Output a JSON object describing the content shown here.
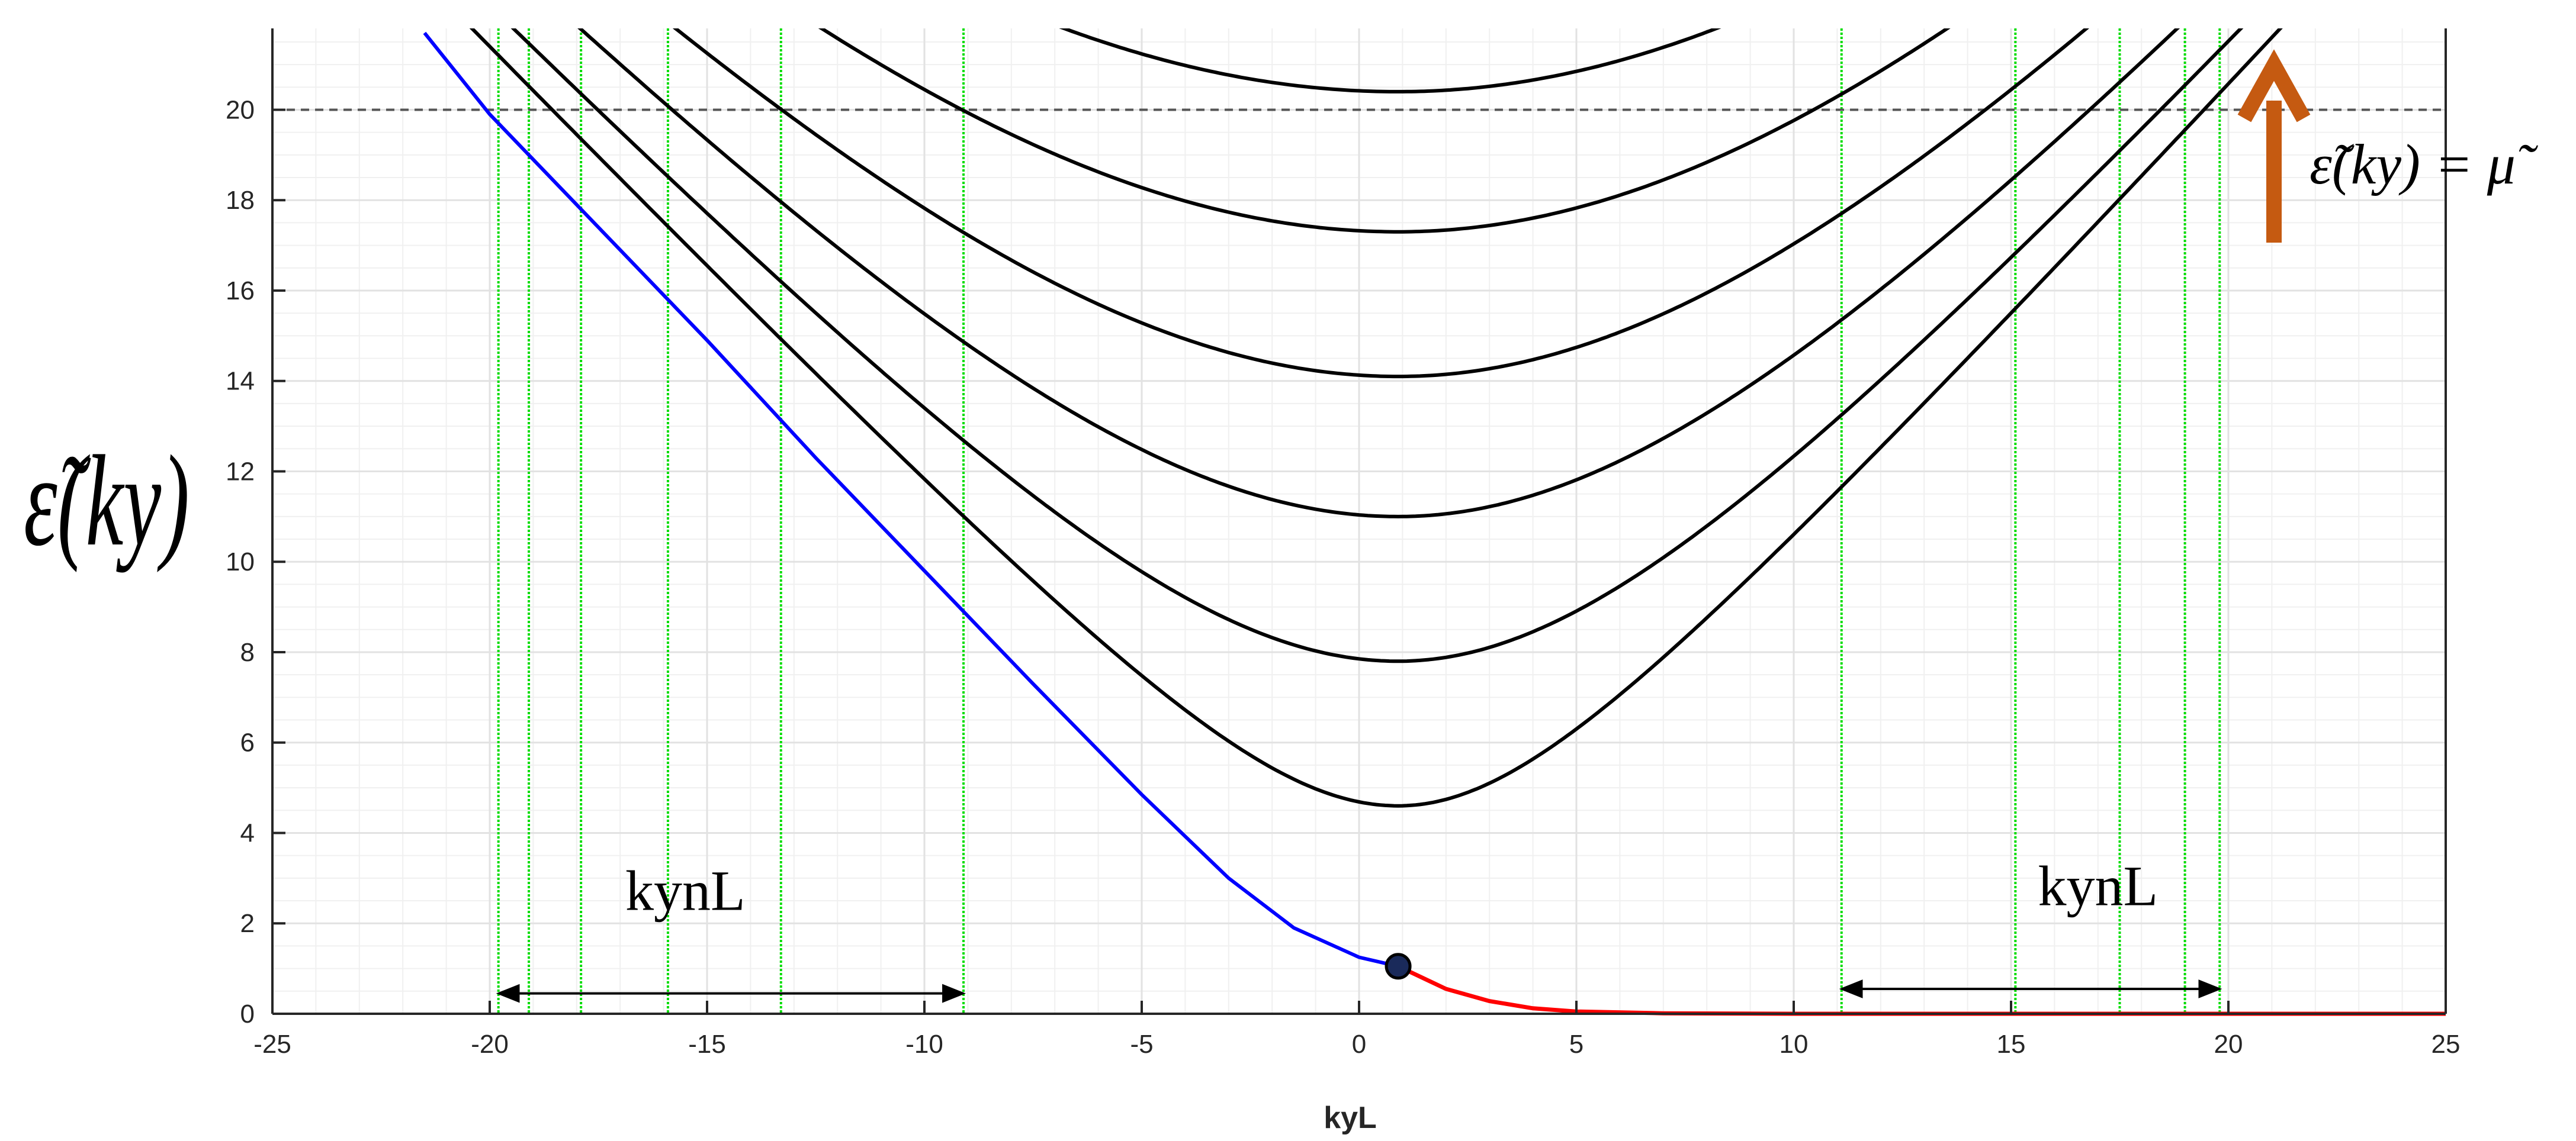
{
  "chart_data": {
    "type": "line",
    "xlim": [
      -25,
      25
    ],
    "ylim": [
      0,
      21.8
    ],
    "xticks": [
      -25,
      -20,
      -15,
      -10,
      -5,
      0,
      5,
      10,
      15,
      20,
      25
    ],
    "yticks": [
      0,
      2,
      4,
      6,
      8,
      10,
      12,
      14,
      16,
      18,
      20
    ],
    "grid": true,
    "xlabel": "kyL",
    "ylabel": "ε̃(ky)",
    "chemical_potential_line": {
      "y": 20,
      "style": "dashed"
    },
    "chemical_potential_label": "ε̃(ky) = μ̃",
    "lowest_band": {
      "edge_branch_color": "#0000ff",
      "bulk_branch_color": "#ff0000",
      "marker": {
        "x": 0.9,
        "y": 1.05
      },
      "x": [
        -21.5,
        -20,
        -17.5,
        -15,
        -12.5,
        -10,
        -7.5,
        -5,
        -3,
        -1.5,
        0,
        0.9,
        2,
        3,
        4,
        5,
        7,
        10,
        15,
        20,
        25
      ],
      "y": [
        21.7,
        19.9,
        17.4,
        14.9,
        12.3,
        9.8,
        7.3,
        4.85,
        3.0,
        1.9,
        1.25,
        1.05,
        0.55,
        0.28,
        0.12,
        0.05,
        0.01,
        0.0,
        0.0,
        0.0,
        0.0
      ]
    },
    "series": [
      {
        "min": 4.6,
        "center": 0.9
      },
      {
        "min": 7.8,
        "center": 0.9
      },
      {
        "min": 11.0,
        "center": 0.9
      },
      {
        "min": 14.1,
        "center": 0.9
      },
      {
        "min": 17.3,
        "center": 0.9
      },
      {
        "min": 20.4,
        "center": 0.9
      }
    ],
    "fermi_crossings_left": [
      -19.8,
      -19.1,
      -17.9,
      -15.9,
      -13.3,
      -9.1
    ],
    "fermi_crossings_right": [
      11.1,
      15.1,
      17.5,
      19.0,
      19.8
    ],
    "annotations": [
      {
        "text": "kynL",
        "label_x": -15.5,
        "label_y": 2.3,
        "arrow_from": -19.8,
        "arrow_to": -9.1,
        "arrow_y": 0.45
      },
      {
        "text": "kynL",
        "label_x": 17.0,
        "label_y": 2.4,
        "arrow_from": 11.1,
        "arrow_to": 19.8,
        "arrow_y": 0.55
      }
    ],
    "colors": {
      "bands": "#000000",
      "fermi_lines": "#00dd00",
      "grid": "#e2e2e2",
      "arrow": "#c55a11"
    }
  }
}
